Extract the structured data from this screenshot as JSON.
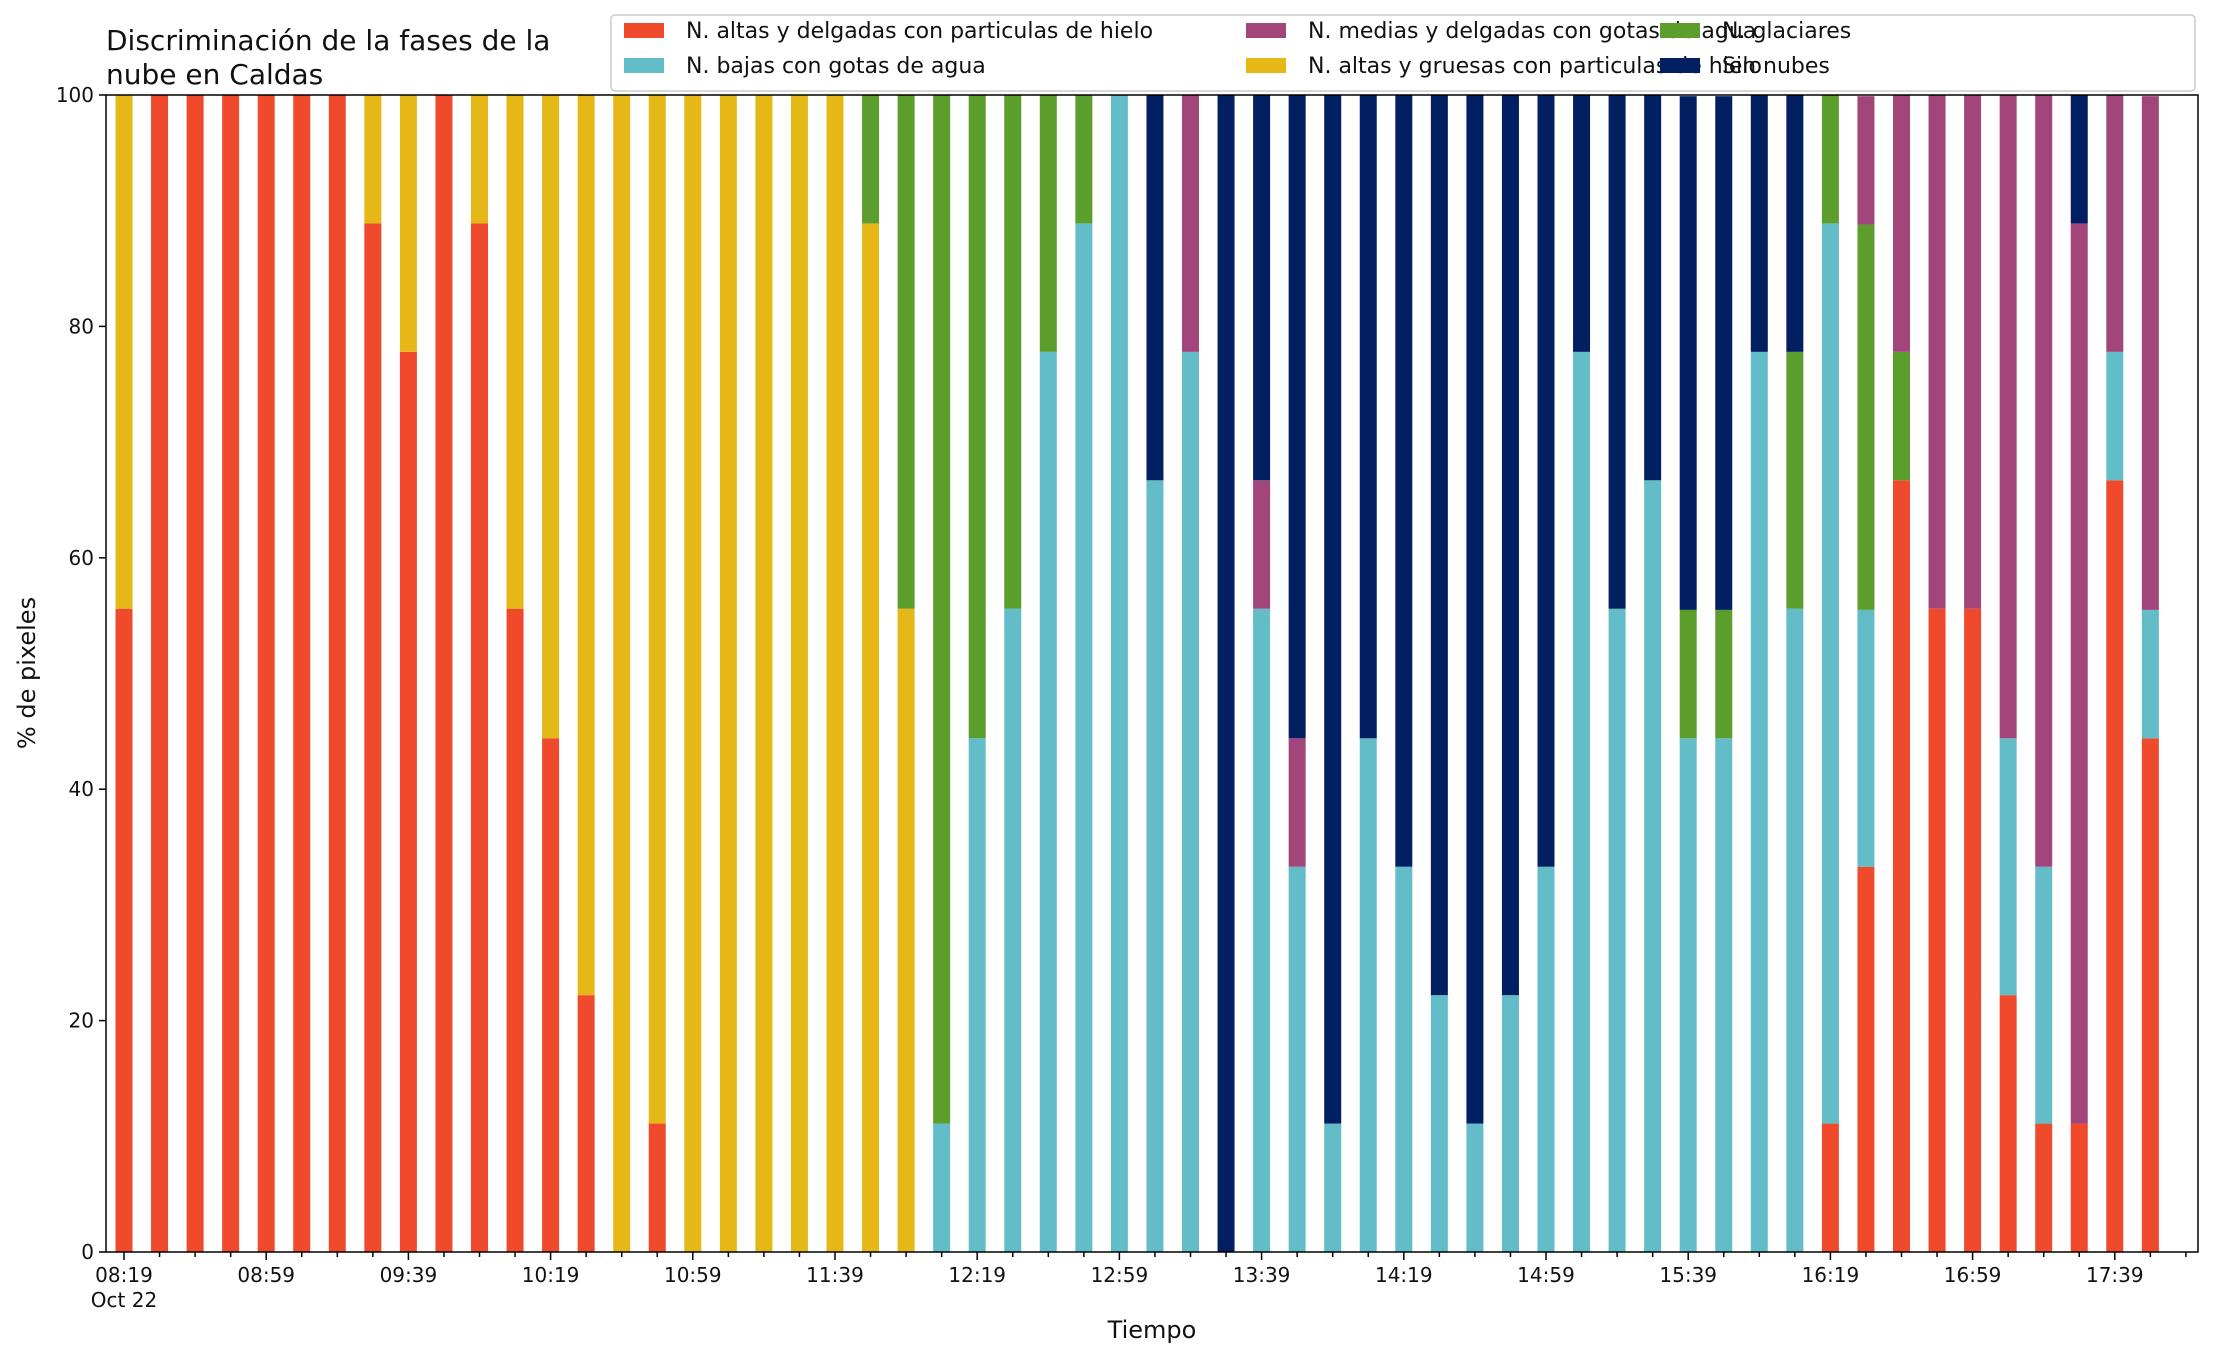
{
  "colors": {
    "N. altas y delgadas con particulas de hielo": "#ee4a2b",
    "N. altas y gruesas con particulas de hielo": "#e5b818",
    "N. bajas con gotas de agua": "#63bdc9",
    "N. glaciares": "#5c9e2b",
    "N. medias y delgadas con gotas de agua": "#a2457b",
    "Sin nubes": "#022061"
  },
  "chart_data": {
    "type": "bar",
    "stacked": true,
    "title": "Discriminación de la fases de la nube en Caldas",
    "title_lines": [
      "Discriminación de la fases de la",
      "nube en Caldas"
    ],
    "xlabel": "Tiempo",
    "ylabel": "% de pixeles",
    "ylim": [
      0,
      100
    ],
    "yticks": [
      0,
      20,
      40,
      60,
      80,
      100
    ],
    "xtick_labels": [
      "08:19",
      "08:59",
      "09:39",
      "10:19",
      "10:59",
      "11:39",
      "12:19",
      "12:59",
      "13:39",
      "14:19",
      "14:59",
      "15:39",
      "16:19",
      "16:59",
      "17:39"
    ],
    "x_date_label": "Oct 22",
    "legend_position": "top-right",
    "legend_order": [
      "N. altas y delgadas con particulas de hielo",
      "N. bajas con gotas de agua",
      "N. medias y delgadas con gotas de agua",
      "N. altas y gruesas con particulas de hielo",
      "N. glaciares",
      "Sin nubes"
    ],
    "categories": [
      "08:19",
      "08:29",
      "08:39",
      "08:49",
      "08:59",
      "09:09",
      "09:19",
      "09:29",
      "09:39",
      "09:49",
      "09:59",
      "10:09",
      "10:19",
      "10:29",
      "10:39",
      "10:49",
      "10:59",
      "11:09",
      "11:19",
      "11:29",
      "11:39",
      "11:49",
      "11:59",
      "12:09",
      "12:19",
      "12:29",
      "12:39",
      "12:49",
      "12:59",
      "13:09",
      "13:19",
      "13:29",
      "13:39",
      "13:49",
      "13:59",
      "14:09",
      "14:19",
      "14:29",
      "14:39",
      "14:49",
      "14:59",
      "15:09",
      "15:19",
      "15:29",
      "15:39",
      "15:49",
      "15:59",
      "16:09",
      "16:19",
      "16:29",
      "16:39",
      "16:49",
      "16:59",
      "17:09",
      "17:19",
      "17:29",
      "17:39",
      "17:49"
    ],
    "series": [
      {
        "name": "N. altas y delgadas con particulas de hielo",
        "values": [
          55.6,
          100,
          100,
          100,
          100,
          100,
          100,
          88.9,
          77.8,
          100,
          88.9,
          55.6,
          44.4,
          22.2,
          0,
          11.1,
          0,
          0,
          0,
          0,
          0,
          0,
          0,
          0,
          0,
          0,
          0,
          0,
          0,
          0,
          0,
          0,
          0,
          0,
          0,
          0,
          0,
          0,
          0,
          0,
          0,
          0,
          0,
          0,
          0,
          0,
          0,
          0,
          11.1,
          33.3,
          66.7,
          55.6,
          55.6,
          22.2,
          11.1,
          11.1,
          66.7,
          44.4
        ]
      },
      {
        "name": "N. altas y gruesas con particulas de hielo",
        "values": [
          44.4,
          0,
          0,
          0,
          0,
          0,
          0,
          11.1,
          22.2,
          0,
          11.1,
          44.4,
          55.6,
          77.8,
          100,
          88.9,
          100,
          100,
          100,
          100,
          100,
          88.9,
          55.6,
          0,
          0,
          0,
          0,
          0,
          0,
          0,
          0,
          0,
          0,
          0,
          0,
          0,
          0,
          0,
          0,
          0,
          0,
          0,
          0,
          0,
          0,
          0,
          0,
          0,
          0,
          0,
          0,
          0,
          0,
          0,
          0,
          0,
          0,
          0
        ]
      },
      {
        "name": "N. bajas con gotas de agua",
        "values": [
          0,
          0,
          0,
          0,
          0,
          0,
          0,
          0,
          0,
          0,
          0,
          0,
          0,
          0,
          0,
          0,
          0,
          0,
          0,
          0,
          0,
          0,
          0,
          11.1,
          44.4,
          55.6,
          77.8,
          88.9,
          100,
          66.7,
          77.8,
          0,
          55.6,
          33.3,
          11.1,
          44.4,
          33.3,
          22.2,
          11.1,
          22.2,
          33.3,
          77.8,
          55.6,
          66.7,
          44.4,
          44.4,
          77.8,
          55.6,
          77.8,
          22.2,
          0,
          0,
          0,
          22.2,
          22.2,
          0,
          11.1,
          11.1
        ]
      },
      {
        "name": "N. glaciares",
        "values": [
          0,
          0,
          0,
          0,
          0,
          0,
          0,
          0,
          0,
          0,
          0,
          0,
          0,
          0,
          0,
          0,
          0,
          0,
          0,
          0,
          0,
          11.1,
          44.4,
          88.9,
          55.6,
          44.4,
          22.2,
          11.1,
          0,
          0,
          0,
          0,
          0,
          0,
          0,
          0,
          0,
          0,
          0,
          0,
          0,
          0,
          0,
          0,
          11.1,
          11.1,
          0,
          22.2,
          11.1,
          33.3,
          11.1,
          0,
          0,
          0,
          0,
          0,
          0,
          0
        ]
      },
      {
        "name": "N. medias y delgadas con gotas de agua",
        "values": [
          0,
          0,
          0,
          0,
          0,
          0,
          0,
          0,
          0,
          0,
          0,
          0,
          0,
          0,
          0,
          0,
          0,
          0,
          0,
          0,
          0,
          0,
          0,
          0,
          0,
          0,
          0,
          0,
          0,
          0,
          22.2,
          0,
          11.1,
          11.1,
          0,
          0,
          0,
          0,
          0,
          0,
          0,
          0,
          0,
          0,
          0,
          0,
          0,
          0,
          0,
          11.1,
          22.2,
          44.4,
          44.4,
          55.6,
          66.7,
          77.8,
          22.2,
          44.4
        ]
      },
      {
        "name": "Sin nubes",
        "values": [
          0,
          0,
          0,
          0,
          0,
          0,
          0,
          0,
          0,
          0,
          0,
          0,
          0,
          0,
          0,
          0,
          0,
          0,
          0,
          0,
          0,
          0,
          0,
          0,
          0,
          0,
          0,
          0,
          0,
          33.3,
          0,
          100,
          33.3,
          55.6,
          88.9,
          55.6,
          66.7,
          77.8,
          88.9,
          77.8,
          66.7,
          22.2,
          44.4,
          33.3,
          44.4,
          44.4,
          22.2,
          22.2,
          0,
          0,
          0,
          0,
          0,
          0,
          0,
          11.1,
          0,
          0
        ]
      }
    ]
  }
}
